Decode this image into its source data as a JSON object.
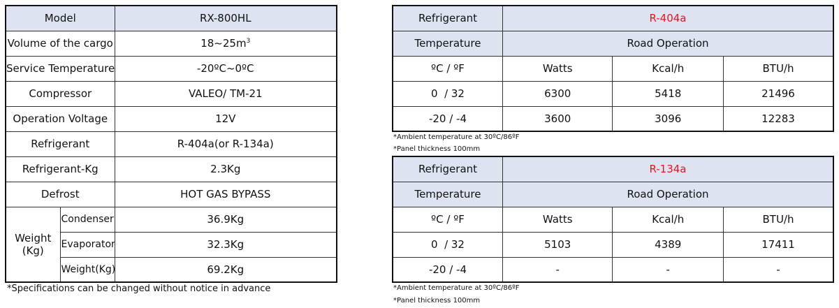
{
  "spec": {
    "rows": [
      {
        "label": "Model",
        "value": "RX-800HL"
      },
      {
        "label": "Volume of the cargo",
        "value": "18~25m",
        "sup": "3"
      },
      {
        "label": "Service Temperature",
        "value": "-20ºC~0ºC"
      },
      {
        "label": "Compressor",
        "value": "VALEO/ TM-21"
      },
      {
        "label": "Operation Voltage",
        "value": "12V"
      },
      {
        "label": "Refrigerant",
        "value": "R-404a(or R-134a)"
      },
      {
        "label": "Refrigerant-Kg",
        "value": "2.3Kg"
      },
      {
        "label": "Defrost",
        "value": "HOT GAS BYPASS"
      }
    ],
    "weight": {
      "label_line1": "Weight",
      "label_line2": "(Kg)",
      "rows": [
        {
          "label": "Condenser",
          "value": "36.9Kg"
        },
        {
          "label": "Evaporator",
          "value": "32.3Kg"
        },
        {
          "label": "Weight(Kg)",
          "value": "69.2Kg"
        }
      ]
    },
    "note": "*Specifications can be changed without notice in advance"
  },
  "perf_tables": [
    {
      "refrigerant_label": "Refrigerant",
      "refrigerant_value": "R-404a",
      "temperature_label": "Temperature",
      "operation_label": "Road Operation",
      "units": [
        "ºC / ºF",
        "Watts",
        "Kcal/h",
        "BTU/h"
      ],
      "rows": [
        [
          "0  / 32",
          "6300",
          "5418",
          "21496"
        ],
        [
          "-20 / -4",
          "3600",
          "3096",
          "12283"
        ]
      ],
      "note1": "*Ambient temperature at 30ºC/86ºF",
      "note2": "*Panel thickness 100mm"
    },
    {
      "refrigerant_label": "Refrigerant",
      "refrigerant_value": "R-134a",
      "temperature_label": "Temperature",
      "operation_label": "Road Operation",
      "units": [
        "ºC / ºF",
        "Watts",
        "Kcal/h",
        "BTU/h"
      ],
      "rows": [
        [
          "0  / 32",
          "5103",
          "4389",
          "17411"
        ],
        [
          "-20 / -4",
          "-",
          "-",
          "-"
        ]
      ],
      "note1": "*Ambient temperature at 30ºC/86ºF",
      "note2": "*Panel thickness 100mm"
    }
  ]
}
